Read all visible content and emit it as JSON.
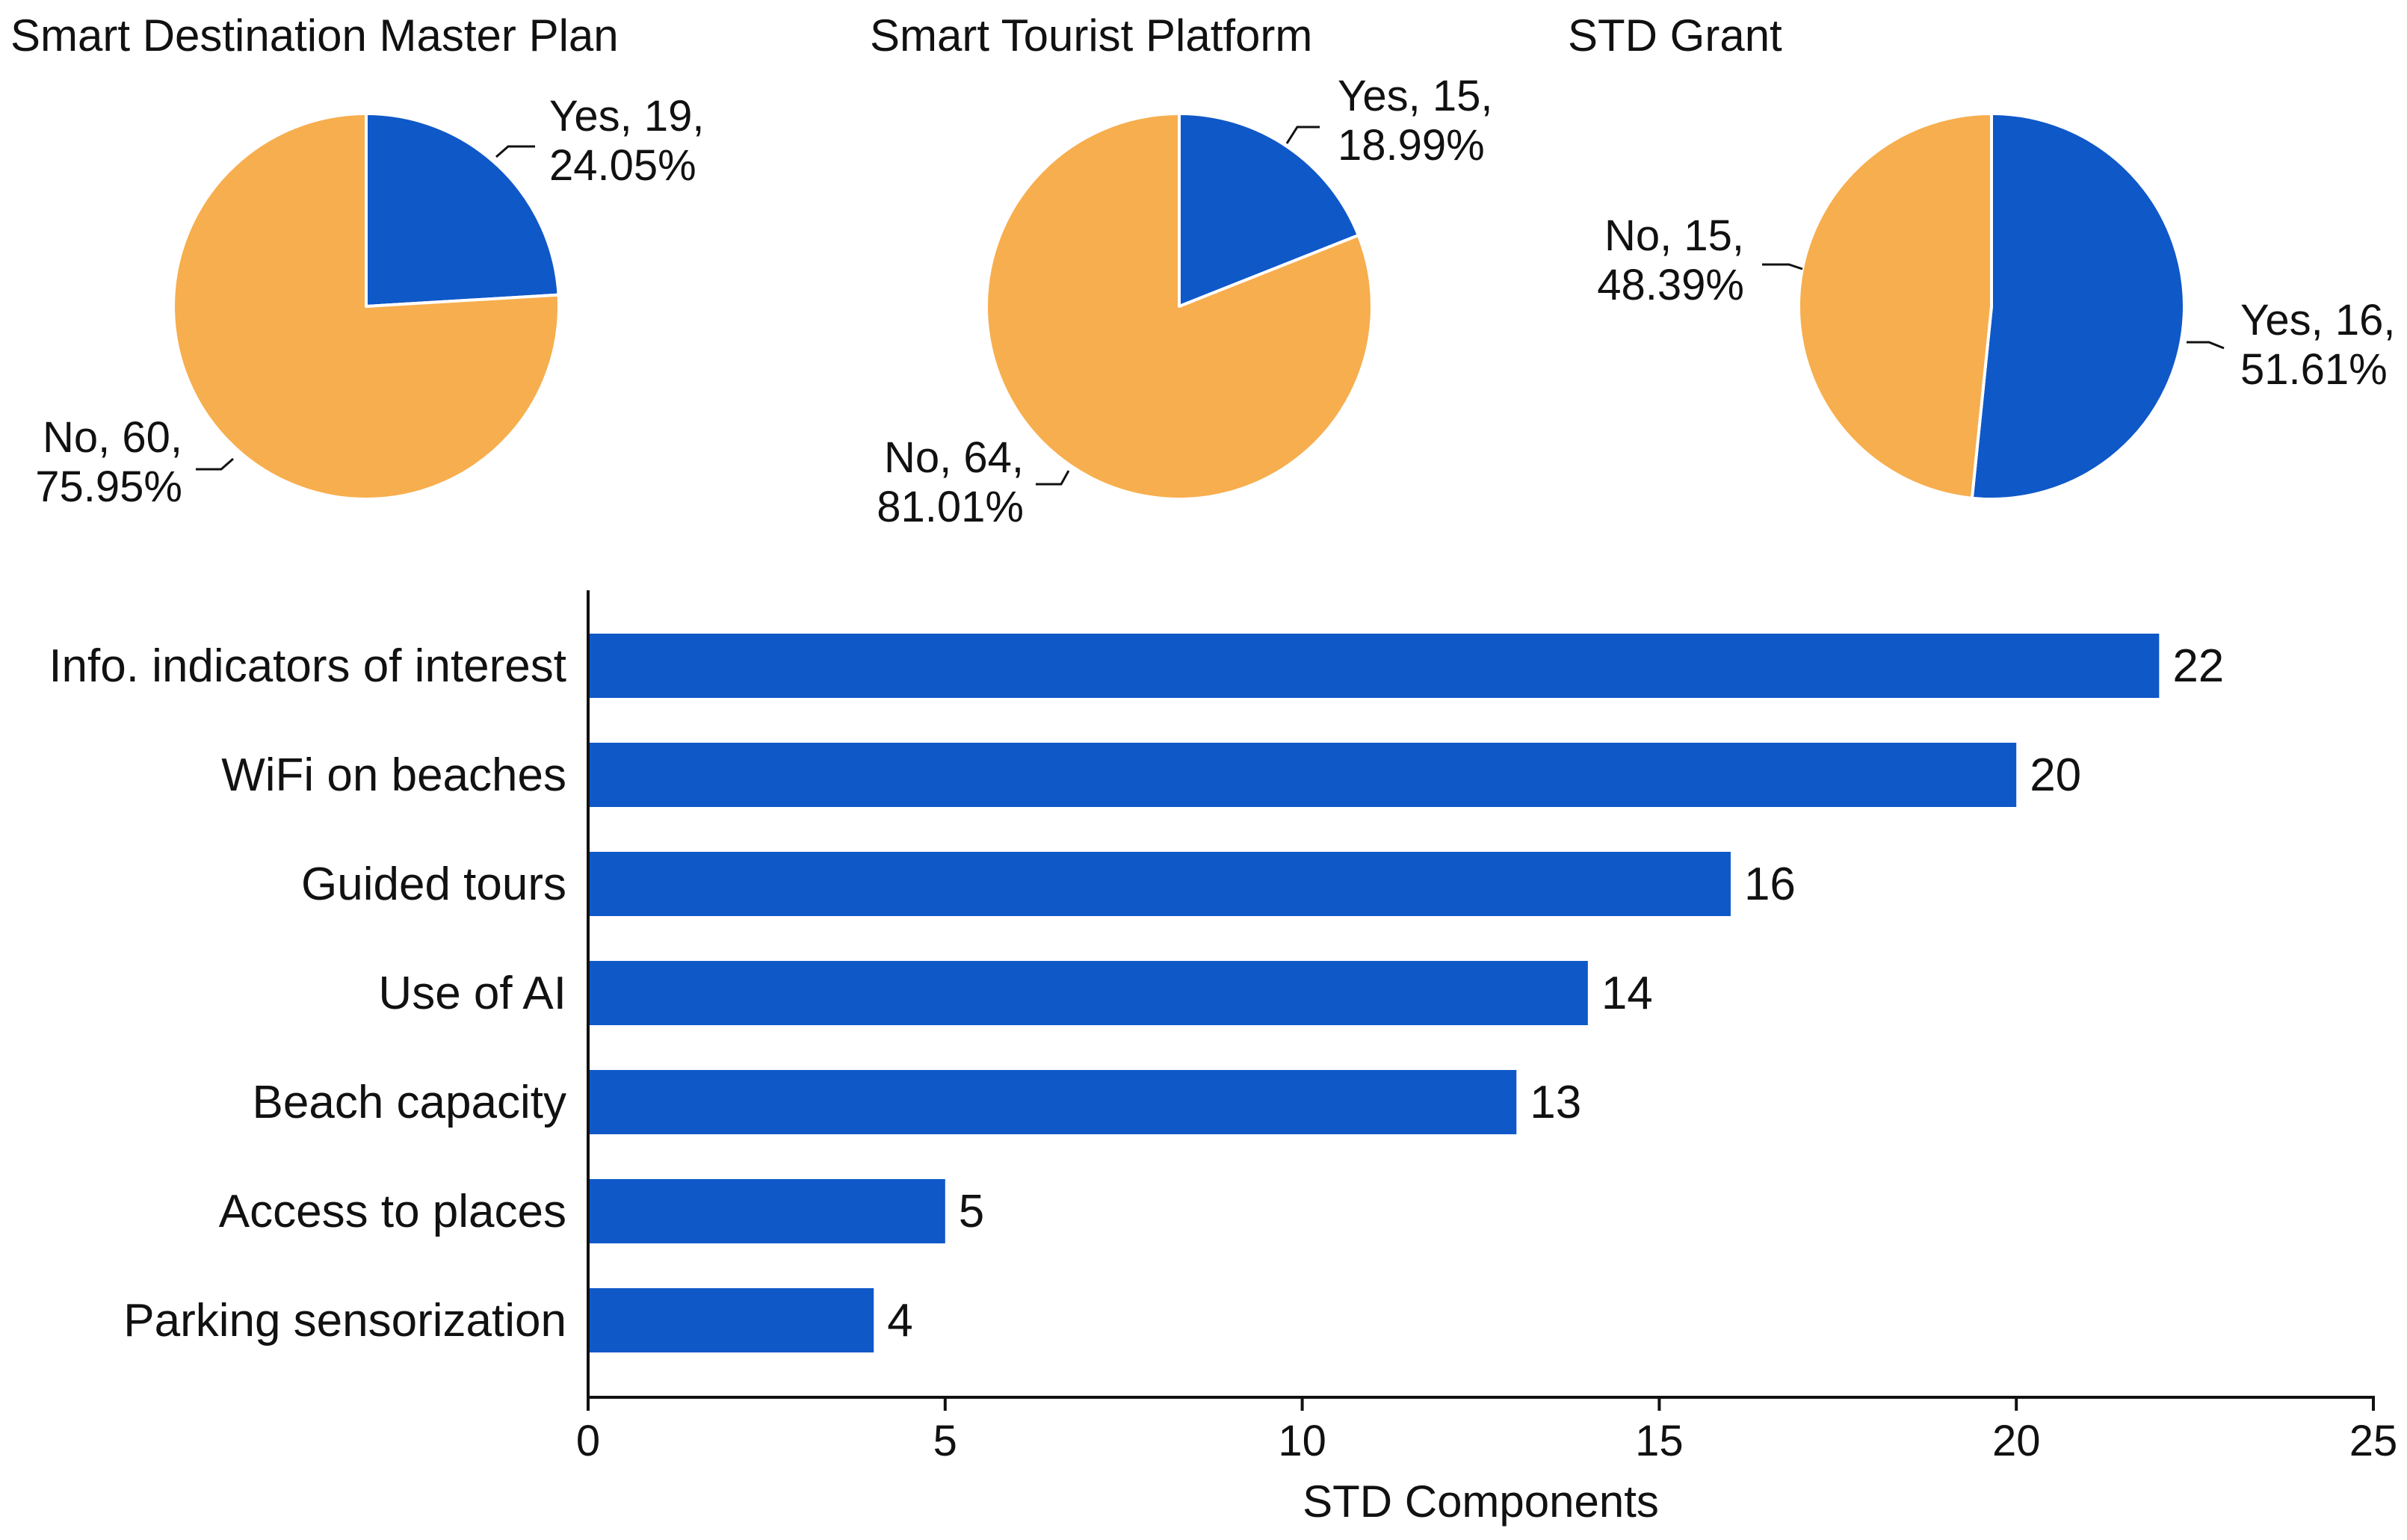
{
  "colors": {
    "yes": "#0f58c8",
    "no": "#f7ae4e",
    "bar": "#0f58c8",
    "axis": "#111111"
  },
  "chart_data": [
    {
      "type": "pie",
      "title": "Smart Destination Master Plan",
      "slices": [
        {
          "name": "Yes",
          "value": 19,
          "percent": 24.05,
          "label_line1": "Yes, 19,",
          "label_line2": "24.05%"
        },
        {
          "name": "No",
          "value": 60,
          "percent": 75.95,
          "label_line1": "No, 60,",
          "label_line2": "75.95%"
        }
      ]
    },
    {
      "type": "pie",
      "title": "Smart Tourist Platform",
      "slices": [
        {
          "name": "Yes",
          "value": 15,
          "percent": 18.99,
          "label_line1": "Yes, 15,",
          "label_line2": "18.99%"
        },
        {
          "name": "No",
          "value": 64,
          "percent": 81.01,
          "label_line1": "No, 64,",
          "label_line2": "81.01%"
        }
      ]
    },
    {
      "type": "pie",
      "title": "STD Grant",
      "slices": [
        {
          "name": "Yes",
          "value": 16,
          "percent": 51.61,
          "label_line1": "Yes, 16,",
          "label_line2": "51.61%"
        },
        {
          "name": "No",
          "value": 15,
          "percent": 48.39,
          "label_line1": "No, 15,",
          "label_line2": "48.39%"
        }
      ]
    },
    {
      "type": "bar",
      "orientation": "horizontal",
      "categories": [
        "Info. indicators of interest",
        "WiFi on beaches",
        "Guided tours",
        "Use of AI",
        "Beach capacity",
        "Access to places",
        "Parking sensorization"
      ],
      "values": [
        22,
        20,
        16,
        14,
        13,
        5,
        4
      ],
      "value_labels": [
        "22",
        "20",
        "16",
        "14",
        "13",
        "5",
        "4"
      ],
      "xlabel": "STD Components",
      "ylabel": "",
      "xlim": [
        0,
        25
      ],
      "xticks": [
        0,
        5,
        10,
        15,
        20,
        25
      ],
      "xtick_labels": [
        "0",
        "5",
        "10",
        "15",
        "20",
        "25"
      ]
    }
  ]
}
